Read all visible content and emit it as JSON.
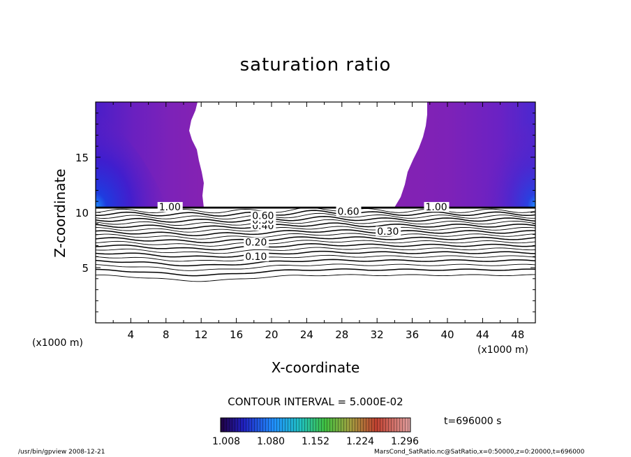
{
  "chart_data": {
    "type": "heatmap",
    "title": "saturation ratio",
    "xlabel": "X-coordinate",
    "ylabel": "Z-coordinate",
    "x_unit_label": "(x1000 m)",
    "xlim": [
      0,
      50
    ],
    "ylim": [
      0,
      20
    ],
    "x_ticks": [
      "4",
      "8",
      "12",
      "16",
      "20",
      "24",
      "28",
      "32",
      "36",
      "40",
      "44",
      "48"
    ],
    "y_ticks": [
      "5",
      "10",
      "15"
    ],
    "contour_interval_text": "CONTOUR INTERVAL = 5.000E-02",
    "contour_levels": [
      0.05,
      0.1,
      0.15,
      0.2,
      0.25,
      0.3,
      0.35,
      0.4,
      0.45,
      0.5,
      0.55,
      0.6,
      0.65,
      0.7,
      0.75,
      0.8,
      0.85,
      0.9,
      0.95,
      1.0
    ],
    "contour_labels": [
      {
        "text": "0.10",
        "x": 17.0,
        "z": 6.0
      },
      {
        "text": "0.20",
        "x": 17.0,
        "z": 7.3
      },
      {
        "text": "0.30",
        "x": 32.0,
        "z": 8.3
      },
      {
        "text": "0.40",
        "x": 17.8,
        "z": 8.8
      },
      {
        "text": "0.50",
        "x": 17.8,
        "z": 9.3
      },
      {
        "text": "0.60",
        "x": 17.8,
        "z": 9.7
      },
      {
        "text": "0.60",
        "x": 27.5,
        "z": 10.1
      },
      {
        "text": "1.00",
        "x": 7.2,
        "z": 10.5
      },
      {
        "text": "1.00",
        "x": 37.5,
        "z": 10.5
      }
    ],
    "shaded_regions": [
      {
        "name": "left supersaturated region",
        "x_range": [
          0,
          12
        ],
        "z_range": [
          10.5,
          20
        ]
      },
      {
        "name": "right supersaturated region",
        "x_range": [
          34,
          50
        ],
        "z_range": [
          10.5,
          20
        ]
      }
    ],
    "colorbar": {
      "ticks": [
        "1.008",
        "1.080",
        "1.152",
        "1.224",
        "1.296"
      ],
      "range": [
        1.008,
        1.296
      ]
    },
    "time_label": "t=696000 s"
  },
  "footer": {
    "left": "/usr/bin/gpview   2008-12-21",
    "right": "MarsCond_SatRatio.nc@SatRatio,x=0:50000,z=0:20000,t=696000"
  }
}
